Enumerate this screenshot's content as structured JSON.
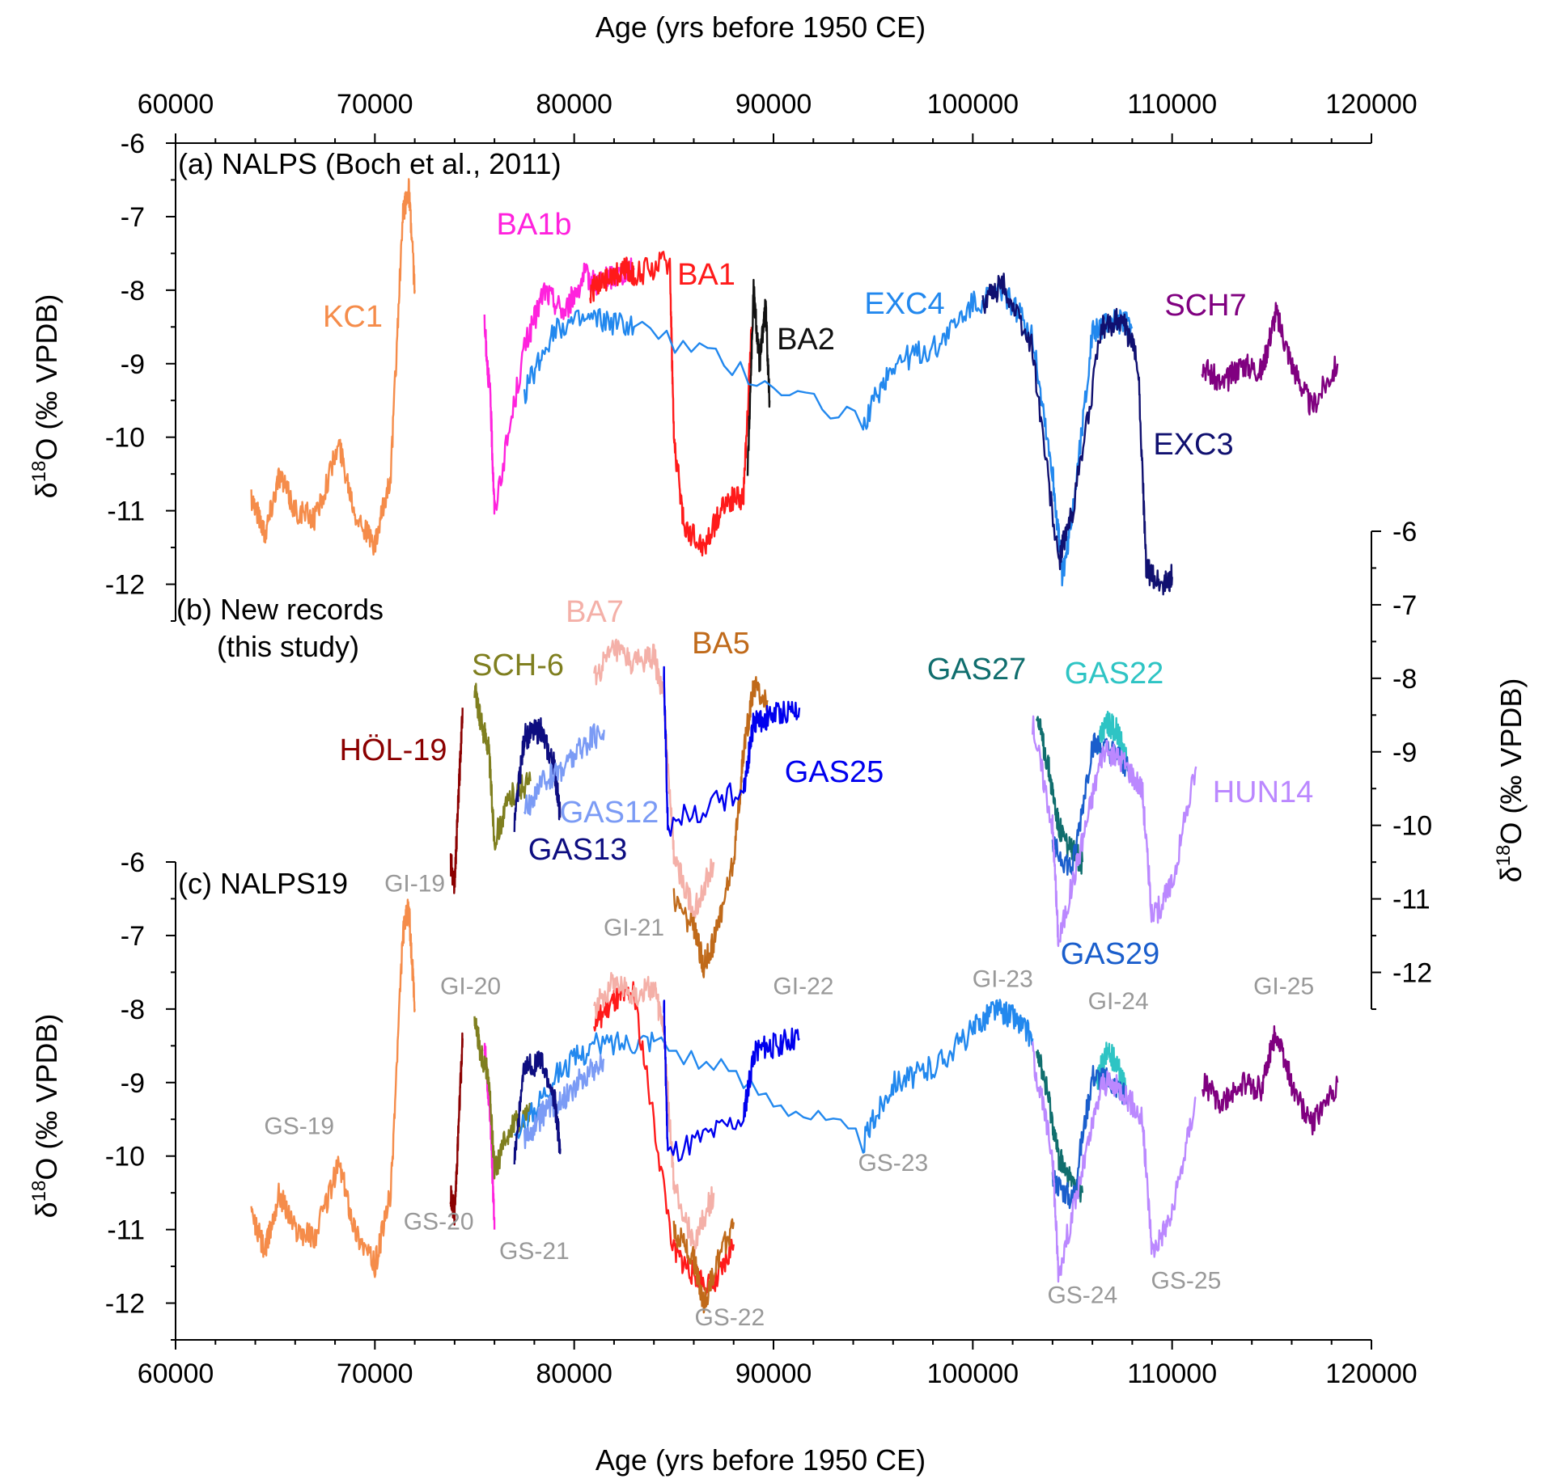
{
  "figure": {
    "xlabel": "Age (yrs before 1950 CE)",
    "ylabel_left": "O (‰ VPDB)",
    "ylabel_right": "O (‰ VPDB)",
    "delta_symbol": "δ",
    "isotope_superscript": "18"
  },
  "chart_data": [
    {
      "id": "a",
      "type": "line",
      "title": "(a) NALPS (Boch et al., 2011)",
      "xlabel": "Age (yrs before 1950 CE)",
      "ylabel": "δ18O (‰ VPDB)",
      "xlim": [
        60000,
        120000
      ],
      "ylim": [
        -12.5,
        -6
      ],
      "yaxis": "left",
      "x_ticks": [
        60000,
        70000,
        80000,
        90000,
        100000,
        110000,
        120000
      ],
      "y_ticks": [
        -6,
        -7,
        -8,
        -9,
        -10,
        -11,
        -12
      ],
      "series": [
        {
          "name": "KC1",
          "color": "#f58c4a",
          "x": [
            63800,
            64500,
            65200,
            66000,
            67000,
            68200,
            69000,
            70000,
            70800,
            71400,
            71700,
            72000
          ],
          "y": [
            -10.8,
            -11.3,
            -10.5,
            -11.0,
            -11.1,
            -10.1,
            -11.0,
            -11.5,
            -10.5,
            -7.0,
            -6.6,
            -8.0
          ]
        },
        {
          "name": "BA1b",
          "color": "#ff22dd",
          "x": [
            75500,
            75800,
            76000,
            77500,
            78500,
            79500,
            80500,
            81200,
            82000,
            83000
          ],
          "y": [
            -8.5,
            -9.5,
            -11.0,
            -8.8,
            -8.0,
            -8.3,
            -7.8,
            -7.9,
            -7.8,
            -7.7
          ]
        },
        {
          "name": "BA1",
          "color": "#ff1a1a",
          "x": [
            80800,
            81500,
            82500,
            83000,
            84800,
            85000,
            85500,
            86500,
            87500,
            88500,
            88900
          ],
          "y": [
            -8.0,
            -7.9,
            -7.7,
            -7.8,
            -7.6,
            -10.0,
            -11.2,
            -11.5,
            -10.9,
            -10.8,
            -8.5
          ]
        },
        {
          "name": "BA2",
          "color": "#111111",
          "x": [
            88700,
            89000,
            89300,
            89600,
            89800
          ],
          "y": [
            -10.5,
            -8.0,
            -9.0,
            -8.2,
            -9.5
          ]
        },
        {
          "name": "EXC4",
          "color": "#2288ee",
          "x": [
            77500,
            79000,
            81000,
            83000,
            94500,
            96000,
            98000,
            100000,
            101500,
            103000,
            104000,
            104500,
            105000,
            106000,
            107000,
            108000
          ],
          "y": [
            -9.4,
            -8.5,
            -8.4,
            -8.5,
            -9.8,
            -9.0,
            -8.8,
            -8.2,
            -8.0,
            -8.6,
            -10.5,
            -11.9,
            -11.0,
            -8.6,
            -8.4,
            -8.5
          ]
        },
        {
          "name": "EXC3",
          "color": "#101070",
          "x": [
            100500,
            101500,
            103000,
            104300,
            105000,
            106500,
            107500,
            108300,
            108700,
            109500,
            110000
          ],
          "y": [
            -8.2,
            -7.9,
            -8.8,
            -11.7,
            -11.0,
            -8.5,
            -8.4,
            -9.0,
            -11.8,
            -12.0,
            -11.9
          ]
        },
        {
          "name": "SCH7",
          "color": "#800080",
          "x": [
            111500,
            112500,
            113500,
            114500,
            115200,
            116000,
            117000,
            118300
          ],
          "y": [
            -9.0,
            -9.3,
            -9.0,
            -9.1,
            -8.3,
            -9.0,
            -9.6,
            -9.0
          ]
        }
      ]
    },
    {
      "id": "b",
      "type": "line",
      "title_line1": "(b) New records",
      "title_line2": "(this study)",
      "xlim": [
        60000,
        120000
      ],
      "ylim": [
        -12.5,
        -6
      ],
      "yaxis": "right",
      "y_ticks": [
        -6,
        -7,
        -8,
        -9,
        -10,
        -11,
        -12
      ],
      "series": [
        {
          "name": "HÖL-19",
          "color": "#8b0000",
          "x": [
            73800,
            74000,
            74200,
            74400
          ],
          "y": [
            -10.5,
            -10.8,
            -9.6,
            -8.4
          ]
        },
        {
          "name": "SCH-6",
          "color": "#7f7f1f",
          "x": [
            75000,
            75300,
            75700,
            76000,
            76800,
            77800
          ],
          "y": [
            -8.1,
            -8.6,
            -8.9,
            -10.2,
            -9.6,
            -9.4
          ]
        },
        {
          "name": "GAS13",
          "color": "#0d0d80",
          "x": [
            77000,
            77500,
            78300,
            79000,
            79300
          ],
          "y": [
            -10.0,
            -8.8,
            -8.7,
            -9.2,
            -9.9
          ]
        },
        {
          "name": "GAS12",
          "color": "#7b9bf5",
          "x": [
            77500,
            78500,
            79500,
            80500,
            81500
          ],
          "y": [
            -9.8,
            -9.4,
            -9.2,
            -8.9,
            -8.7
          ]
        },
        {
          "name": "BA7",
          "color": "#f4b0a8",
          "x": [
            81000,
            82000,
            83000,
            84000,
            84500,
            85000,
            86000,
            87000
          ],
          "y": [
            -8.0,
            -7.6,
            -7.8,
            -7.7,
            -8.3,
            -10.4,
            -11.2,
            -10.5
          ]
        },
        {
          "name": "BA5",
          "color": "#c06a1a",
          "x": [
            85000,
            86000,
            86500,
            87000,
            88000,
            88500,
            89000,
            89700
          ],
          "y": [
            -11.0,
            -11.4,
            -11.9,
            -11.6,
            -10.5,
            -9.0,
            -8.1,
            -8.3
          ]
        },
        {
          "name": "GAS25",
          "color": "#0000ee",
          "x": [
            84500,
            84700,
            88500,
            89000,
            90000,
            91300
          ],
          "y": [
            -7.9,
            -10.0,
            -9.5,
            -8.6,
            -8.5,
            -8.4
          ]
        },
        {
          "name": "GAS27",
          "color": "#106e6e",
          "x": [
            103200,
            103800,
            104300,
            104800,
            105500
          ],
          "y": [
            -8.5,
            -9.2,
            -10.0,
            -10.3,
            -10.5
          ]
        },
        {
          "name": "GAS22",
          "color": "#2ec4c4",
          "x": [
            106200,
            106700,
            107200,
            107700
          ],
          "y": [
            -9.0,
            -8.6,
            -8.7,
            -9.1
          ]
        },
        {
          "name": "GAS29",
          "color": "#1a5ecc",
          "x": [
            104000,
            105000,
            106000,
            107000,
            107800
          ],
          "y": [
            -10.3,
            -10.6,
            -8.9,
            -9.0,
            -9.2
          ]
        },
        {
          "name": "HUN14",
          "color": "#bb88ff",
          "x": [
            103000,
            104000,
            104300,
            105500,
            106500,
            107500,
            108500,
            109000,
            110000,
            111200
          ],
          "y": [
            -8.6,
            -10.0,
            -11.6,
            -10.2,
            -9.0,
            -9.1,
            -9.5,
            -11.3,
            -10.8,
            -9.2
          ]
        }
      ]
    },
    {
      "id": "c",
      "type": "line",
      "title": "(c) NALPS19",
      "xlabel": "Age (yrs before 1950 CE)",
      "ylabel": "δ18O (‰ VPDB)",
      "xlim": [
        60000,
        120000
      ],
      "ylim": [
        -12.5,
        -6
      ],
      "yaxis": "left",
      "x_ticks": [
        60000,
        70000,
        80000,
        90000,
        100000,
        110000,
        120000
      ],
      "y_ticks": [
        -6,
        -7,
        -8,
        -9,
        -10,
        -11,
        -12
      ],
      "series": [
        {
          "name": "KC1",
          "color": "#f58c4a",
          "x": [
            63800,
            64500,
            65200,
            66000,
            67000,
            68200,
            69000,
            70000,
            70800,
            71400,
            71700,
            72000
          ],
          "y": [
            -10.8,
            -11.3,
            -10.5,
            -11.0,
            -11.1,
            -10.1,
            -11.0,
            -11.5,
            -10.5,
            -7.0,
            -6.6,
            -8.0
          ]
        },
        {
          "name": "HÖL-19",
          "color": "#8b0000",
          "x": [
            73800,
            74000,
            74200,
            74400
          ],
          "y": [
            -10.5,
            -10.8,
            -9.6,
            -8.4
          ]
        },
        {
          "name": "BA1b",
          "color": "#ff22dd",
          "x": [
            75500,
            75800,
            76000
          ],
          "y": [
            -8.5,
            -9.5,
            -11.0
          ]
        },
        {
          "name": "SCH-6",
          "color": "#7f7f1f",
          "x": [
            75000,
            75300,
            75700,
            76000,
            76800,
            77800
          ],
          "y": [
            -8.1,
            -8.6,
            -8.9,
            -10.2,
            -9.6,
            -9.4
          ]
        },
        {
          "name": "EXC4",
          "color": "#2288ee",
          "x": [
            77000,
            79000,
            81000,
            84000,
            94500,
            96000,
            98000,
            100000,
            101000,
            102000,
            103000
          ],
          "y": [
            -9.8,
            -8.9,
            -8.5,
            -8.4,
            -9.8,
            -9.0,
            -8.8,
            -8.3,
            -8.0,
            -8.1,
            -8.4
          ]
        },
        {
          "name": "GAS12",
          "color": "#7b9bf5",
          "x": [
            77500,
            78500,
            79500,
            80500,
            81500
          ],
          "y": [
            -9.8,
            -9.4,
            -9.2,
            -8.9,
            -8.7
          ]
        },
        {
          "name": "GAS13",
          "color": "#0d0d80",
          "x": [
            77000,
            77500,
            78300,
            79000,
            79300
          ],
          "y": [
            -10.0,
            -8.8,
            -8.7,
            -9.2,
            -9.9
          ]
        },
        {
          "name": "BA1",
          "color": "#ff1a1a",
          "x": [
            81000,
            82000,
            83000,
            85000,
            86000,
            87000,
            88000
          ],
          "y": [
            -8.2,
            -7.9,
            -7.8,
            -11.3,
            -11.6,
            -11.8,
            -11.2
          ]
        },
        {
          "name": "BA7",
          "color": "#f4b0a8",
          "x": [
            81000,
            82000,
            83000,
            84000,
            84500,
            85000,
            86000,
            87000
          ],
          "y": [
            -8.0,
            -7.6,
            -7.8,
            -7.7,
            -8.3,
            -10.4,
            -11.2,
            -10.5
          ]
        },
        {
          "name": "BA5",
          "color": "#c06a1a",
          "x": [
            85000,
            86000,
            86500,
            87000,
            88000
          ],
          "y": [
            -11.0,
            -11.4,
            -12.0,
            -11.6,
            -10.9
          ]
        },
        {
          "name": "GAS25",
          "color": "#0000ee",
          "x": [
            84500,
            84700,
            88500,
            89000,
            90000,
            91300
          ],
          "y": [
            -7.9,
            -10.0,
            -9.5,
            -8.6,
            -8.5,
            -8.4
          ]
        },
        {
          "name": "GAS27",
          "color": "#106e6e",
          "x": [
            103200,
            103800,
            104300,
            104800,
            105500
          ],
          "y": [
            -8.5,
            -9.2,
            -10.0,
            -10.3,
            -10.5
          ]
        },
        {
          "name": "GAS22",
          "color": "#2ec4c4",
          "x": [
            106200,
            106700,
            107200,
            107700
          ],
          "y": [
            -9.0,
            -8.6,
            -8.7,
            -9.1
          ]
        },
        {
          "name": "GAS29",
          "color": "#1a5ecc",
          "x": [
            104000,
            105000,
            106000,
            107000,
            107800
          ],
          "y": [
            -10.3,
            -10.6,
            -8.9,
            -9.0,
            -9.2
          ]
        },
        {
          "name": "HUN14",
          "color": "#bb88ff",
          "x": [
            103000,
            104000,
            104300,
            105500,
            106500,
            107500,
            108500,
            109000,
            110000,
            111200
          ],
          "y": [
            -8.6,
            -10.0,
            -11.6,
            -10.2,
            -9.0,
            -9.1,
            -9.5,
            -11.3,
            -10.8,
            -9.2
          ]
        },
        {
          "name": "SCH7",
          "color": "#800080",
          "x": [
            111500,
            112500,
            113500,
            114500,
            115200,
            116000,
            117000,
            118300
          ],
          "y": [
            -9.0,
            -9.3,
            -9.0,
            -9.1,
            -8.3,
            -9.0,
            -9.6,
            -9.0
          ]
        }
      ],
      "annotations": [
        {
          "text": "GI-19",
          "x": 72000,
          "y": -6.4
        },
        {
          "text": "GI-20",
          "x": 74800,
          "y": -7.8
        },
        {
          "text": "GI-21",
          "x": 83000,
          "y": -7.0
        },
        {
          "text": "GI-22",
          "x": 91500,
          "y": -7.8
        },
        {
          "text": "GI-23",
          "x": 101500,
          "y": -7.7
        },
        {
          "text": "GI-24",
          "x": 107300,
          "y": -8.0
        },
        {
          "text": "GI-25",
          "x": 115600,
          "y": -7.8
        },
        {
          "text": "GS-19",
          "x": 66200,
          "y": -9.7
        },
        {
          "text": "GS-20",
          "x": 73200,
          "y": -11.0
        },
        {
          "text": "GS-21",
          "x": 78000,
          "y": -11.4
        },
        {
          "text": "GS-22",
          "x": 87800,
          "y": -12.3
        },
        {
          "text": "GS-23",
          "x": 96000,
          "y": -10.2
        },
        {
          "text": "GS-24",
          "x": 105500,
          "y": -12.0
        },
        {
          "text": "GS-25",
          "x": 110700,
          "y": -11.8
        }
      ]
    }
  ],
  "labels": {
    "a": [
      {
        "text": "KC1",
        "series": "KC1"
      },
      {
        "text": "BA1b",
        "series": "BA1b"
      },
      {
        "text": "BA1",
        "series": "BA1"
      },
      {
        "text": "BA2",
        "series": "BA2"
      },
      {
        "text": "EXC4",
        "series": "EXC4"
      },
      {
        "text": "SCH7",
        "series": "SCH7"
      },
      {
        "text": "EXC3",
        "series": "EXC3"
      }
    ],
    "b": [
      {
        "text": "BA7",
        "series": "BA7"
      },
      {
        "text": "BA5",
        "series": "BA5"
      },
      {
        "text": "SCH-6",
        "series": "SCH-6"
      },
      {
        "text": "HÖL-19",
        "series": "HÖL-19"
      },
      {
        "text": "GAS12",
        "series": "GAS12"
      },
      {
        "text": "GAS13",
        "series": "GAS13"
      },
      {
        "text": "GAS25",
        "series": "GAS25"
      },
      {
        "text": "GAS27",
        "series": "GAS27"
      },
      {
        "text": "GAS22",
        "series": "GAS22"
      },
      {
        "text": "HUN14",
        "series": "HUN14"
      },
      {
        "text": "GAS29",
        "series": "GAS29"
      }
    ]
  }
}
